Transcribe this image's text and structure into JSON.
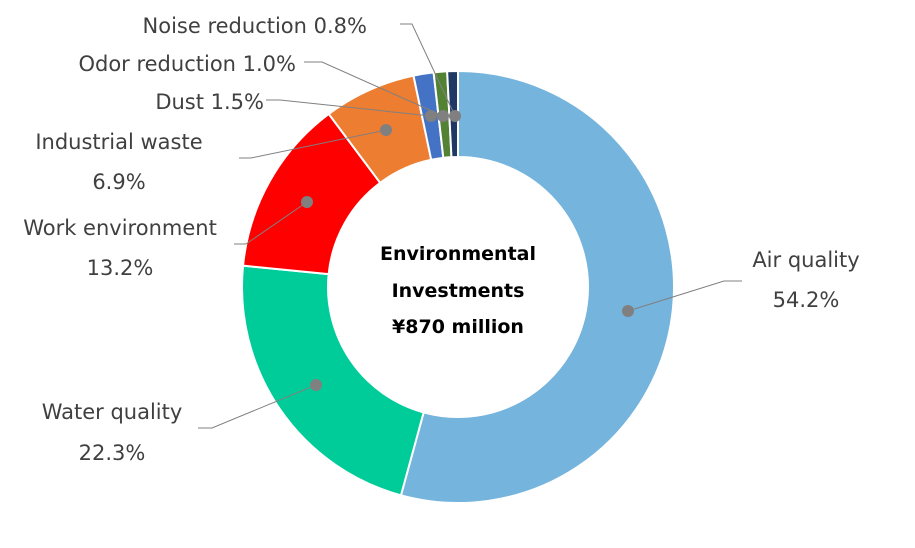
{
  "chart_data": {
    "type": "pie",
    "variant": "donut",
    "center_text": [
      "Environmental",
      "Investments",
      "¥870 million"
    ],
    "slices": [
      {
        "name": "Air quality",
        "value": 54.2,
        "value_label": "54.2%",
        "color": "#75B4DD"
      },
      {
        "name": "Water quality",
        "value": 22.3,
        "value_label": "22.3%",
        "color": "#00CC99"
      },
      {
        "name": "Work environment",
        "value": 13.2,
        "value_label": "13.2%",
        "color": "#FF0000"
      },
      {
        "name": "Industrial waste",
        "value": 6.9,
        "value_label": "6.9%",
        "color": "#ED7D31"
      },
      {
        "name": "Dust",
        "value": 1.5,
        "value_label": "1.5%",
        "color": "#4472C4"
      },
      {
        "name": "Odor reduction",
        "value": 1.0,
        "value_label": "1.0%",
        "color": "#548235"
      },
      {
        "name": "Noise reduction",
        "value": 0.8,
        "value_label": "0.8%",
        "color": "#203864"
      }
    ],
    "leader_line_color": "#808080",
    "marker_color": "#808080"
  }
}
